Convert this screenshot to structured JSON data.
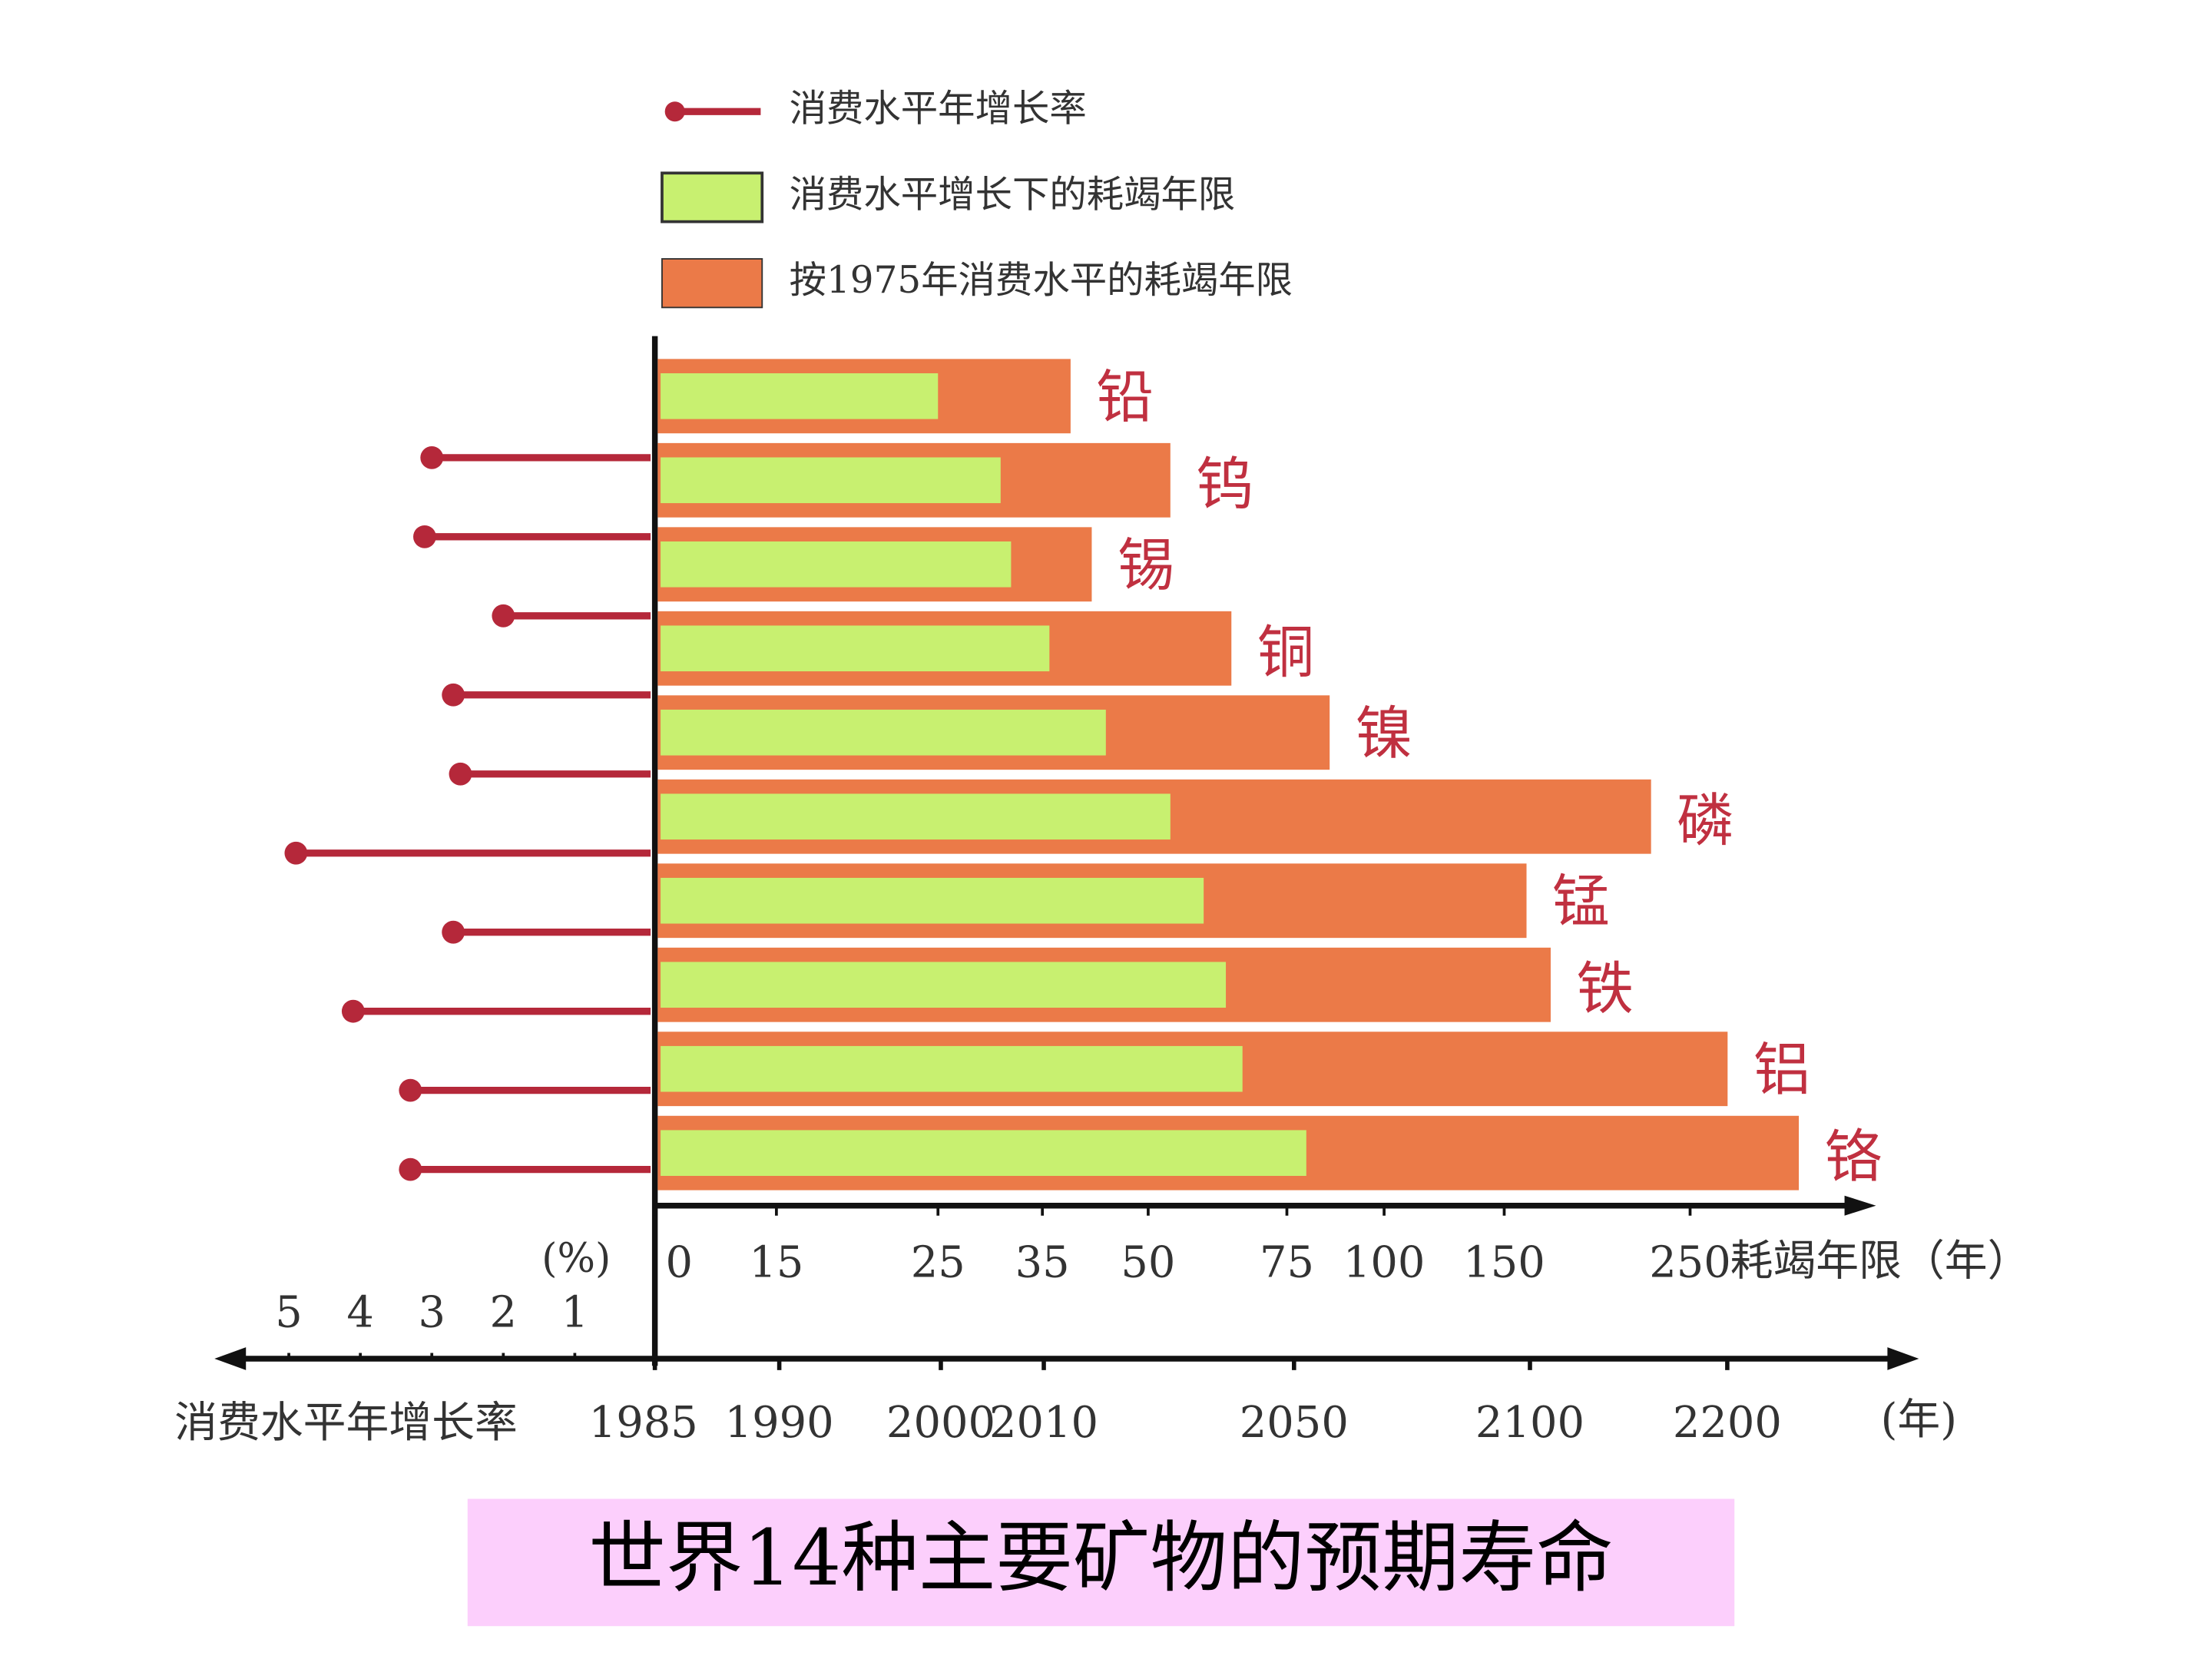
{
  "chart_data": {
    "type": "bar",
    "title": "世界14种主要矿物的预期寿命",
    "categories": [
      "铅",
      "钨",
      "锡",
      "铜",
      "镍",
      "磷",
      "锰",
      "铁",
      "铝",
      "铬"
    ],
    "series": [
      {
        "name": "消费水平年增长率",
        "color": "#b5283a",
        "axis": "x2",
        "values": [
          3.0,
          3.1,
          2.0,
          2.7,
          2.6,
          4.9,
          2.7,
          4.1,
          3.3,
          3.3
        ]
      },
      {
        "name": "消费水平增长下的耗竭年限",
        "color": "#c8f070",
        "values": [
          25,
          31,
          32,
          36,
          44,
          54,
          60,
          64,
          67,
          80
        ]
      },
      {
        "name": "按1975年消费水平的耗竭年限",
        "color": "#eb7a48",
        "values": [
          39,
          54,
          42,
          65,
          86,
          229,
          162,
          175,
          270,
          308
        ]
      }
    ],
    "xlabel": "耗竭年限（年）",
    "xlim": [
      0,
      340
    ],
    "xticks": [
      0,
      15,
      25,
      35,
      50,
      75,
      100,
      150,
      250
    ],
    "x2label": "消费水平年增长率",
    "x2unit": "(%)",
    "x2lim": [
      0,
      5.8
    ],
    "x2ticks": [
      5,
      4,
      3,
      2,
      1
    ],
    "x3label": "(年)",
    "x3lim": [
      1985,
      2240
    ],
    "x3ticks": [
      1985,
      1990,
      2000,
      2010,
      2050,
      2100,
      2200
    ],
    "label_color": "#c03040"
  }
}
